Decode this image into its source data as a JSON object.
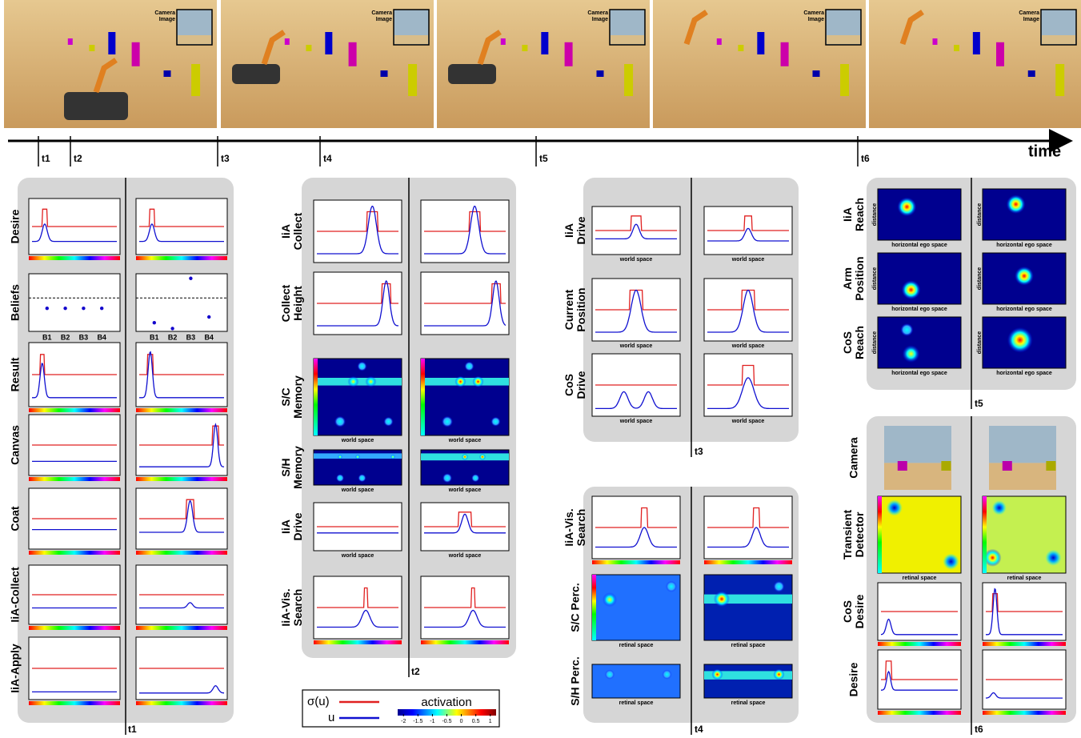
{
  "timeline": {
    "labels": [
      "t1",
      "t2",
      "t3",
      "t4",
      "t5",
      "t6"
    ],
    "axis_label": "time"
  },
  "screenshots": [
    {
      "inset_label": [
        "Camera",
        "Image"
      ]
    },
    {
      "inset_label": [
        "Camera",
        "Image"
      ]
    },
    {
      "inset_label": [
        "Camera",
        "Image"
      ]
    },
    {
      "inset_label": [
        "Camera",
        "Image"
      ]
    },
    {
      "inset_label": [
        "Camera",
        "Image"
      ]
    }
  ],
  "panels": [
    {
      "time_label": "t1",
      "rows": [
        {
          "label": [
            "Desire"
          ]
        },
        {
          "label": [
            "Beliefs"
          ],
          "xlabels": [
            [
              "B1",
              "B2",
              "B3",
              "B4"
            ],
            [
              "B1",
              "B2",
              "B3",
              "B4"
            ]
          ]
        },
        {
          "label": [
            "Result"
          ]
        },
        {
          "label": [
            "Canvas"
          ]
        },
        {
          "label": [
            "Coat"
          ]
        },
        {
          "label": [
            "IiA-Collect"
          ]
        },
        {
          "label": [
            "IiA-Apply"
          ]
        }
      ]
    },
    {
      "time_label": "t2",
      "rows": [
        {
          "label": [
            "IiA",
            "Collect"
          ]
        },
        {
          "label": [
            "Collect",
            "Height"
          ]
        },
        {
          "label": [
            "S/C",
            "Memory"
          ],
          "xlabels": [
            "world space",
            "world space"
          ]
        },
        {
          "label": [
            "S/H",
            "Memory"
          ],
          "xlabels": [
            "world space",
            "world space"
          ]
        },
        {
          "label": [
            "IiA",
            "Drive"
          ],
          "xlabels": [
            "world space",
            "world space"
          ]
        },
        {
          "label": [
            "IiA-Vis.",
            "Search"
          ]
        }
      ]
    },
    {
      "time_label": "t3",
      "rows": [
        {
          "label": [
            "IiA",
            "Drive"
          ],
          "xlabels": [
            "world space",
            "world space"
          ]
        },
        {
          "label": [
            "Current",
            "Position"
          ],
          "xlabels": [
            "world space",
            "world space"
          ]
        },
        {
          "label": [
            "CoS",
            "Drive"
          ],
          "xlabels": [
            "world space",
            "world space"
          ]
        }
      ]
    },
    {
      "time_label": "t4",
      "rows": [
        {
          "label": [
            "IiA-Vis.",
            "Search"
          ]
        },
        {
          "label": [
            "S/C Perc."
          ],
          "xlabels": [
            "retinal space",
            "retinal space"
          ]
        },
        {
          "label": [
            "S/H Perc."
          ],
          "xlabels": [
            "retinal space",
            "retinal space"
          ]
        }
      ]
    },
    {
      "time_label": "t5",
      "rows": [
        {
          "label": [
            "IiA",
            "Reach"
          ],
          "xlabels": [
            "horizontal ego space",
            "horizontal ego space"
          ],
          "ylabels": [
            "distance",
            "distance"
          ]
        },
        {
          "label": [
            "Arm",
            "Position"
          ],
          "xlabels": [
            "horizontal ego space",
            "horizontal ego space"
          ],
          "ylabels": [
            "distance",
            "distance"
          ]
        },
        {
          "label": [
            "CoS",
            "Reach"
          ],
          "xlabels": [
            "horizontal ego space",
            "horizontal ego space"
          ],
          "ylabels": [
            "distance",
            "distance"
          ]
        }
      ]
    },
    {
      "time_label": "t6",
      "rows": [
        {
          "label": [
            "Camera"
          ]
        },
        {
          "label": [
            "Transient",
            "Detector"
          ],
          "xlabels": [
            "retinal space",
            "retinal space"
          ]
        },
        {
          "label": [
            "CoS",
            "Desire"
          ]
        },
        {
          "label": [
            "Desire"
          ]
        }
      ]
    }
  ],
  "legend": {
    "sigma_label": "σ(u)",
    "u_label": "u",
    "colorbar_title": "activation",
    "colorbar_lim": [
      -2.2,
      1.2
    ],
    "colorbar_ticks": [
      -2,
      -1.5,
      -1,
      -0.5,
      0,
      0.5,
      1
    ]
  }
}
